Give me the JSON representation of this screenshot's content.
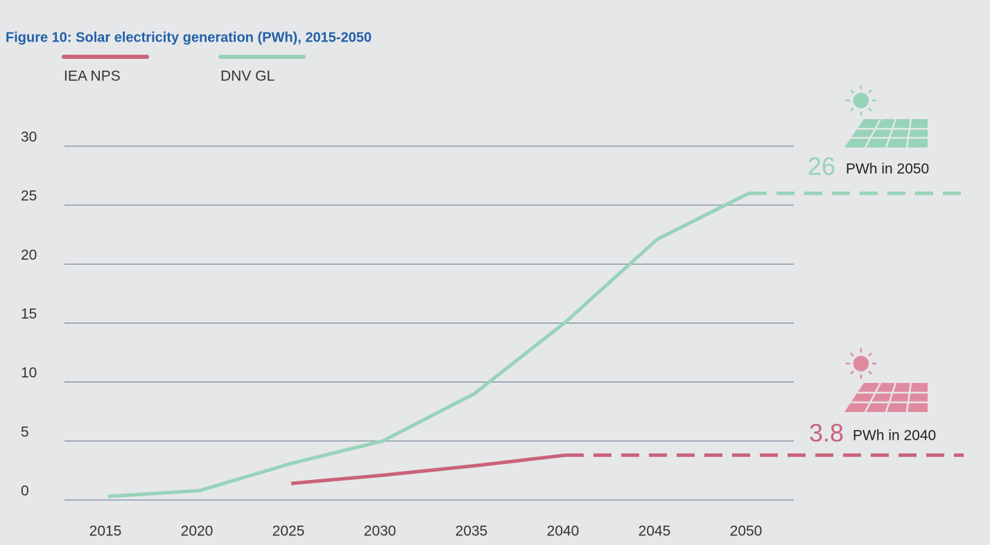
{
  "chart_data": {
    "type": "line",
    "title": "Figure 10: Solar electricity generation (PWh), 2015-2050",
    "x": [
      2015,
      2020,
      2025,
      2030,
      2035,
      2040,
      2045,
      2050
    ],
    "series": [
      {
        "name": "IEA NPS",
        "color": "#c9637a",
        "values": [
          null,
          null,
          1.4,
          2.1,
          2.9,
          3.8,
          null,
          null
        ]
      },
      {
        "name": "DNV GL",
        "color": "#97d3b9",
        "values": [
          0.3,
          0.8,
          3.1,
          5.0,
          9.0,
          15.1,
          22.1,
          26
        ]
      }
    ],
    "xlim": [
      2015,
      2050
    ],
    "xticks": [
      2015,
      2020,
      2025,
      2030,
      2035,
      2040,
      2045,
      2050
    ],
    "ylim": [
      0,
      30
    ],
    "yticks": [
      0,
      5,
      10,
      15,
      20,
      25,
      30
    ],
    "grid": true,
    "annotations": [
      {
        "value": 26,
        "text": "PWh in 2050",
        "color": "#97d3b9"
      },
      {
        "value": 3.8,
        "text": "PWh in 2040",
        "color": "#c9637a"
      }
    ]
  }
}
